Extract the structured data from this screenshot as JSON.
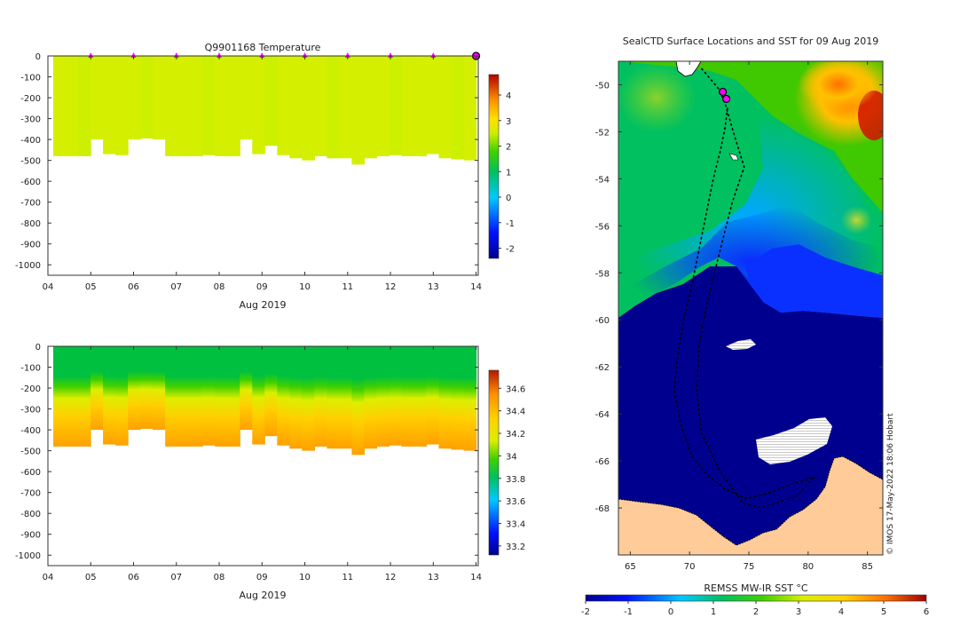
{
  "chart_data": [
    {
      "type": "heatmap",
      "title": "Q9901168  Temperature",
      "x_tick_labels": [
        "04",
        "05",
        "06",
        "07",
        "08",
        "09",
        "10",
        "11",
        "12",
        "13",
        "14"
      ],
      "xlabel": "Aug 2019",
      "y_tick_labels": [
        "0",
        "-100",
        "-200",
        "-300",
        "-400",
        "-500",
        "-600",
        "-700",
        "-800",
        "-900",
        "-1000"
      ],
      "ylim": [
        -1050,
        0
      ],
      "colorbar_ticks": [
        "4",
        "3",
        "2",
        "1",
        "0",
        "-1",
        "-2"
      ],
      "colorbar_range": [
        -2.4,
        4.8
      ],
      "dominant_value": 2.3,
      "profile_depths": [
        -480,
        -480,
        -480,
        -400,
        -470,
        -475,
        -400,
        -395,
        -400,
        -480,
        -480,
        -480,
        -475,
        -480,
        -480,
        -400,
        -470,
        -430,
        -475,
        -490,
        -500,
        -480,
        -490,
        -490,
        -520,
        -490,
        -480,
        -475,
        -480,
        -480,
        -470,
        -490,
        -495,
        -500
      ],
      "profile_marker_days": [
        5,
        6,
        7,
        8,
        9,
        10,
        11,
        12,
        13
      ],
      "marker_color": "#ff00ff"
    },
    {
      "type": "heatmap",
      "title": "",
      "x_tick_labels": [
        "04",
        "05",
        "06",
        "07",
        "08",
        "09",
        "10",
        "11",
        "12",
        "13",
        "14"
      ],
      "xlabel": "Aug 2019",
      "y_tick_labels": [
        "0",
        "-100",
        "-200",
        "-300",
        "-400",
        "-500",
        "-600",
        "-700",
        "-800",
        "-900",
        "-1000"
      ],
      "ylim": [
        -1050,
        0
      ],
      "colorbar_ticks": [
        "34.6",
        "34.4",
        "34.2",
        "34",
        "33.8",
        "33.6",
        "33.4",
        "33.2"
      ],
      "colorbar_range": [
        33.12,
        34.76
      ],
      "surface_value": 33.95,
      "deep_value": 34.5,
      "profile_depths": [
        -480,
        -480,
        -480,
        -400,
        -470,
        -475,
        -400,
        -395,
        -400,
        -480,
        -480,
        -480,
        -475,
        -480,
        -480,
        -400,
        -470,
        -430,
        -475,
        -490,
        -500,
        -480,
        -490,
        -490,
        -520,
        -490,
        -480,
        -475,
        -480,
        -480,
        -470,
        -490,
        -495,
        -500
      ]
    },
    {
      "type": "heatmap",
      "title": "SealCTD Surface Locations and SST for 09 Aug 2019",
      "x_tick_labels": [
        "65",
        "70",
        "75",
        "80",
        "85"
      ],
      "xlim": [
        64,
        86.3
      ],
      "y_tick_labels": [
        "-50",
        "-52",
        "-54",
        "-56",
        "-58",
        "-60",
        "-62",
        "-64",
        "-66",
        "-68"
      ],
      "ylim": [
        -70,
        -49
      ],
      "colorbar_label": "REMSS MW-IR SST °C",
      "colorbar_ticks": [
        "-2",
        "-1",
        "0",
        "1",
        "2",
        "3",
        "4",
        "5",
        "6"
      ],
      "colorbar_range": [
        -2,
        6
      ],
      "credit": "© IMOS 17-May-2022 18:06 Hobart",
      "land_color": "#ffcc99",
      "ice_color": "#00008f",
      "track": [
        [
          73.2,
          -51.0
        ],
        [
          73.0,
          -51.8
        ],
        [
          72.6,
          -52.8
        ],
        [
          72.0,
          -54.0
        ],
        [
          71.4,
          -55.5
        ],
        [
          70.8,
          -57.0
        ],
        [
          70.2,
          -58.5
        ],
        [
          69.5,
          -60.0
        ],
        [
          69.0,
          -61.5
        ],
        [
          68.7,
          -63.0
        ],
        [
          69.3,
          -64.5
        ],
        [
          70.2,
          -65.8
        ],
        [
          71.5,
          -66.6
        ],
        [
          73.0,
          -67.2
        ],
        [
          74.8,
          -67.6
        ],
        [
          76.5,
          -67.4
        ],
        [
          78.5,
          -67.0
        ],
        [
          80.5,
          -66.7
        ],
        [
          79.0,
          -67.5
        ],
        [
          76.0,
          -68.0
        ],
        [
          74.5,
          -67.8
        ],
        [
          72.5,
          -66.4
        ],
        [
          71.0,
          -64.8
        ],
        [
          70.6,
          -63.0
        ],
        [
          70.8,
          -61.0
        ],
        [
          71.6,
          -59.0
        ],
        [
          72.6,
          -57.0
        ],
        [
          73.6,
          -55.0
        ],
        [
          74.6,
          -53.5
        ],
        [
          73.8,
          -52.2
        ],
        [
          73.0,
          -50.8
        ],
        [
          72.5,
          -50.2
        ],
        [
          71.0,
          -49.3
        ]
      ],
      "positions": [
        [
          72.8,
          -50.3
        ],
        [
          73.1,
          -50.6
        ]
      ],
      "marker_color": "#ff00ff"
    }
  ]
}
